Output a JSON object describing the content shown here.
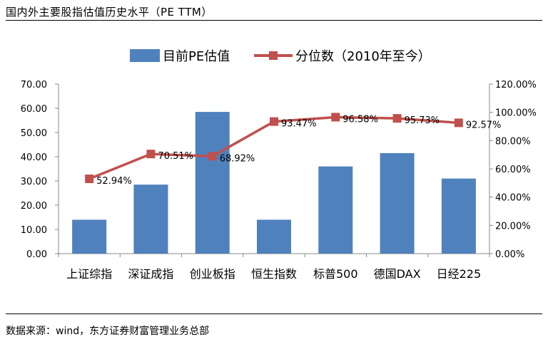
{
  "header": {
    "title": "国内外主要股指估值历史水平（PE TTM）"
  },
  "footer": {
    "source": "数据来源：wind，东方证券财富管理业务总部"
  },
  "chart_data": {
    "type": "bar",
    "categories": [
      "上证综指",
      "深证成指",
      "创业板指",
      "恒生指数",
      "标普500",
      "德国DAX",
      "日经225"
    ],
    "series": [
      {
        "name": "目前PE估值",
        "type": "bar",
        "axis": "left",
        "color": "#4F81BD",
        "values": [
          14.0,
          28.5,
          58.5,
          14.0,
          36.0,
          41.5,
          31.0
        ]
      },
      {
        "name": "分位数（2010年至今）",
        "type": "line",
        "axis": "right",
        "color": "#C0504D",
        "values": [
          52.94,
          70.51,
          68.92,
          93.47,
          96.58,
          95.73,
          92.57
        ],
        "labels": [
          "52.94%",
          "70.51%",
          "68.92%",
          "93.47%",
          "96.58%",
          "95.73%",
          "92.57%"
        ]
      }
    ],
    "y_left": {
      "lim": [
        0,
        70
      ],
      "ticks": [
        0,
        10,
        20,
        30,
        40,
        50,
        60,
        70
      ],
      "tick_labels": [
        "0.00",
        "10.00",
        "20.00",
        "30.00",
        "40.00",
        "50.00",
        "60.00",
        "70.00"
      ]
    },
    "y_right": {
      "lim": [
        0,
        120
      ],
      "ticks": [
        0,
        20,
        40,
        60,
        80,
        100,
        120
      ],
      "tick_labels": [
        "0.00%",
        "20.00%",
        "40.00%",
        "60.00%",
        "80.00%",
        "100.00%",
        "120.00%"
      ]
    },
    "legend": {
      "position": "top"
    },
    "grid": false
  }
}
